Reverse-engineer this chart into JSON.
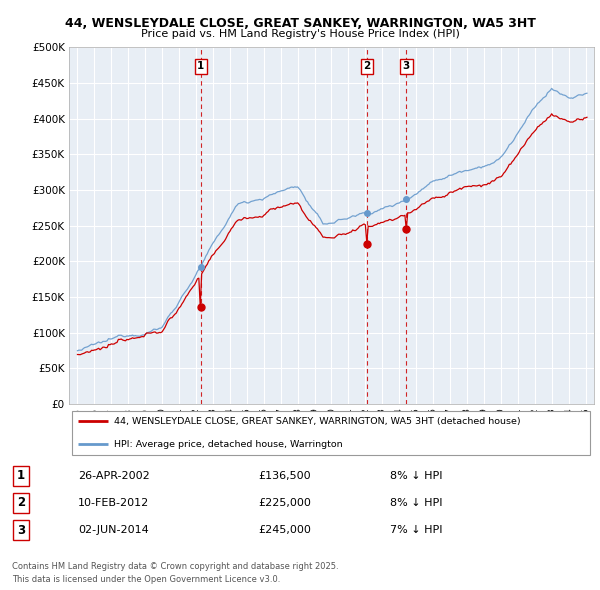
{
  "title_line1": "44, WENSLEYDALE CLOSE, GREAT SANKEY, WARRINGTON, WA5 3HT",
  "title_line2": "Price paid vs. HM Land Registry's House Price Index (HPI)",
  "legend_label_red": "44, WENSLEYDALE CLOSE, GREAT SANKEY, WARRINGTON, WA5 3HT (detached house)",
  "legend_label_blue": "HPI: Average price, detached house, Warrington",
  "footer_line1": "Contains HM Land Registry data © Crown copyright and database right 2025.",
  "footer_line2": "This data is licensed under the Open Government Licence v3.0.",
  "transactions": [
    {
      "num": 1,
      "date": "26-APR-2002",
      "price": "£136,500",
      "rel": "8% ↓ HPI",
      "year": 2002.29
    },
    {
      "num": 2,
      "date": "10-FEB-2012",
      "price": "£225,000",
      "rel": "8% ↓ HPI",
      "year": 2012.11
    },
    {
      "num": 3,
      "date": "02-JUN-2014",
      "price": "£245,000",
      "rel": "7% ↓ HPI",
      "year": 2014.42
    }
  ],
  "ylim": [
    0,
    500000
  ],
  "yticks": [
    0,
    50000,
    100000,
    150000,
    200000,
    250000,
    300000,
    350000,
    400000,
    450000,
    500000
  ],
  "xstart": 1995,
  "xend": 2025,
  "background_color": "#ffffff",
  "chart_bg_color": "#e8eef5",
  "grid_color": "#ffffff",
  "red_color": "#cc0000",
  "blue_color": "#6699cc"
}
